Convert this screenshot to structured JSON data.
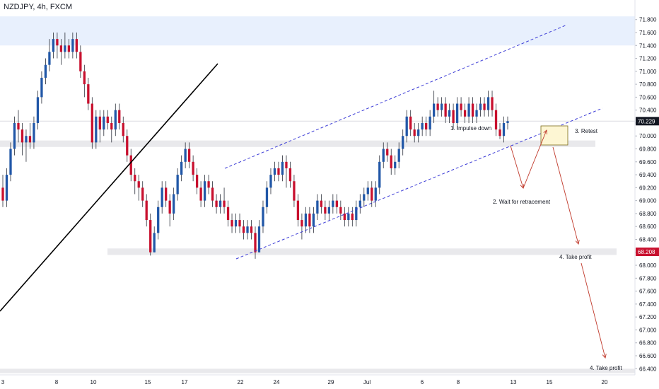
{
  "header": {
    "symbol": "NZDJPY, 4h, FXCM"
  },
  "colors": {
    "bull": "#2157a7",
    "bear": "#c8102e",
    "channel": "#3b3bd6",
    "arrow": "#c0392b",
    "zone_top": "#e8f0fd",
    "zone_gray": "#e9e9ec",
    "retest_box": "#fdf6d3",
    "price_tag": "#131722",
    "price_tag_red": "#c8102e"
  },
  "annotations": [
    {
      "id": "impulse",
      "text": "1. Impulse down"
    },
    {
      "id": "retracement",
      "text": "2. Wait for retracement"
    },
    {
      "id": "retest",
      "text": "3. Retest"
    },
    {
      "id": "tp1",
      "text": "4. Take profit"
    },
    {
      "id": "tp2",
      "text": "4. Take profit"
    }
  ],
  "chart_data": {
    "type": "candlestick",
    "title": "NZDJPY, 4h, FXCM",
    "ylim": [
      66.3,
      71.9
    ],
    "y_ticks": [
      "71.800",
      "71.600",
      "71.400",
      "71.200",
      "71.000",
      "70.800",
      "70.600",
      "70.400",
      "70.200",
      "70.000",
      "69.800",
      "69.600",
      "69.400",
      "69.200",
      "69.000",
      "68.800",
      "68.600",
      "68.400",
      "68.200",
      "68.000",
      "67.800",
      "67.600",
      "67.400",
      "67.200",
      "67.000",
      "66.800",
      "66.600",
      "66.400"
    ],
    "x_ticks": [
      "3",
      "8",
      "10",
      "15",
      "17",
      "22",
      "24",
      "29",
      "Jul",
      "6",
      "8",
      "13",
      "15",
      "20"
    ],
    "current_price": {
      "label": "70.229",
      "value": 70.229
    },
    "support_price": {
      "label": "68.208",
      "value": 68.208
    },
    "zones": [
      {
        "name": "resistance",
        "from": 71.4,
        "to": 71.85
      },
      {
        "name": "retest-level",
        "from": 69.83,
        "to": 69.93
      },
      {
        "name": "take-profit-1",
        "from": 68.16,
        "to": 68.26
      },
      {
        "name": "take-profit-2",
        "from": 66.33,
        "to": 66.4
      }
    ],
    "candles": [
      [
        69.2,
        69.0,
        69.4,
        68.9
      ],
      [
        69.0,
        69.4,
        69.5,
        68.9
      ],
      [
        69.4,
        69.8,
        69.9,
        69.3
      ],
      [
        69.8,
        70.2,
        70.3,
        69.7
      ],
      [
        70.2,
        70.1,
        70.4,
        69.9
      ],
      [
        70.1,
        69.9,
        70.2,
        69.7
      ],
      [
        69.9,
        70.0,
        70.1,
        69.6
      ],
      [
        70.0,
        69.9,
        70.2,
        69.8
      ],
      [
        69.9,
        70.2,
        70.3,
        69.8
      ],
      [
        70.2,
        70.6,
        70.7,
        70.1
      ],
      [
        70.6,
        70.9,
        71.0,
        70.5
      ],
      [
        70.9,
        71.1,
        71.2,
        70.8
      ],
      [
        71.1,
        71.3,
        71.5,
        71.0
      ],
      [
        71.3,
        71.5,
        71.6,
        71.2
      ],
      [
        71.5,
        71.4,
        71.6,
        71.2
      ],
      [
        71.4,
        71.3,
        71.5,
        71.1
      ],
      [
        71.3,
        71.4,
        71.6,
        71.2
      ],
      [
        71.4,
        71.3,
        71.5,
        71.2
      ],
      [
        71.3,
        71.5,
        71.6,
        71.2
      ],
      [
        71.5,
        71.3,
        71.6,
        71.2
      ],
      [
        71.3,
        71.0,
        71.4,
        70.9
      ],
      [
        71.0,
        70.8,
        71.1,
        70.6
      ],
      [
        70.8,
        70.5,
        70.9,
        70.4
      ],
      [
        70.5,
        69.9,
        70.6,
        69.8
      ],
      [
        69.9,
        70.3,
        70.4,
        69.8
      ],
      [
        70.3,
        70.1,
        70.4,
        69.9
      ],
      [
        70.1,
        70.3,
        70.4,
        70.0
      ],
      [
        70.3,
        70.2,
        70.4,
        70.1
      ],
      [
        70.2,
        70.1,
        70.3,
        69.9
      ],
      [
        70.1,
        70.4,
        70.5,
        70.0
      ],
      [
        70.4,
        70.2,
        70.5,
        70.1
      ],
      [
        70.2,
        70.0,
        70.3,
        69.9
      ],
      [
        70.0,
        69.7,
        70.1,
        69.6
      ],
      [
        69.7,
        69.4,
        69.8,
        69.3
      ],
      [
        69.4,
        69.3,
        69.5,
        69.1
      ],
      [
        69.3,
        69.2,
        69.4,
        69.0
      ],
      [
        69.2,
        69.0,
        69.3,
        68.9
      ],
      [
        69.0,
        68.7,
        69.1,
        68.6
      ],
      [
        68.7,
        68.2,
        68.8,
        68.15
      ],
      [
        68.2,
        68.5,
        68.6,
        68.2
      ],
      [
        68.5,
        68.9,
        69.0,
        68.4
      ],
      [
        68.9,
        69.2,
        69.3,
        68.8
      ],
      [
        69.2,
        69.0,
        69.3,
        68.9
      ],
      [
        69.0,
        68.8,
        69.1,
        68.6
      ],
      [
        68.8,
        69.1,
        69.2,
        68.7
      ],
      [
        69.1,
        69.4,
        69.5,
        69.0
      ],
      [
        69.4,
        69.6,
        69.7,
        69.3
      ],
      [
        69.6,
        69.8,
        69.9,
        69.5
      ],
      [
        69.8,
        69.6,
        69.9,
        69.5
      ],
      [
        69.6,
        69.4,
        69.7,
        69.3
      ],
      [
        69.4,
        69.2,
        69.5,
        69.1
      ],
      [
        69.2,
        69.0,
        69.3,
        68.9
      ],
      [
        69.0,
        69.3,
        69.4,
        68.9
      ],
      [
        69.3,
        69.2,
        69.4,
        69.1
      ],
      [
        69.2,
        69.0,
        69.3,
        68.9
      ],
      [
        69.0,
        68.9,
        69.1,
        68.8
      ],
      [
        68.9,
        69.0,
        69.1,
        68.8
      ],
      [
        69.0,
        68.9,
        69.2,
        68.8
      ],
      [
        68.9,
        68.7,
        69.0,
        68.6
      ],
      [
        68.7,
        68.6,
        68.8,
        68.5
      ],
      [
        68.6,
        68.7,
        68.8,
        68.5
      ],
      [
        68.7,
        68.6,
        68.8,
        68.5
      ],
      [
        68.6,
        68.5,
        68.7,
        68.4
      ],
      [
        68.5,
        68.6,
        68.7,
        68.4
      ],
      [
        68.6,
        68.5,
        68.7,
        68.4
      ],
      [
        68.5,
        68.2,
        68.6,
        68.1
      ],
      [
        68.2,
        68.6,
        68.7,
        68.2
      ],
      [
        68.6,
        68.9,
        69.0,
        68.5
      ],
      [
        68.9,
        69.2,
        69.3,
        68.8
      ],
      [
        69.2,
        69.4,
        69.5,
        69.1
      ],
      [
        69.4,
        69.5,
        69.6,
        69.3
      ],
      [
        69.5,
        69.4,
        69.6,
        69.3
      ],
      [
        69.4,
        69.6,
        69.7,
        69.3
      ],
      [
        69.6,
        69.5,
        69.7,
        69.2
      ],
      [
        69.5,
        69.3,
        69.6,
        69.2
      ],
      [
        69.3,
        69.0,
        69.4,
        68.9
      ],
      [
        69.0,
        68.7,
        69.1,
        68.6
      ],
      [
        68.7,
        68.6,
        68.8,
        68.4
      ],
      [
        68.6,
        68.8,
        68.9,
        68.5
      ],
      [
        68.8,
        68.6,
        68.9,
        68.5
      ],
      [
        68.6,
        68.8,
        68.9,
        68.5
      ],
      [
        68.8,
        69.0,
        69.1,
        68.7
      ],
      [
        69.0,
        68.9,
        69.1,
        68.8
      ],
      [
        68.9,
        68.8,
        69.0,
        68.7
      ],
      [
        68.8,
        68.9,
        69.0,
        68.7
      ],
      [
        68.9,
        69.0,
        69.1,
        68.8
      ],
      [
        69.0,
        68.9,
        69.1,
        68.8
      ],
      [
        68.9,
        68.8,
        69.0,
        68.7
      ],
      [
        68.8,
        68.7,
        68.9,
        68.6
      ],
      [
        68.7,
        68.8,
        68.9,
        68.6
      ],
      [
        68.8,
        68.7,
        68.9,
        68.6
      ],
      [
        68.7,
        68.9,
        69.0,
        68.6
      ],
      [
        68.9,
        69.0,
        69.1,
        68.8
      ],
      [
        69.0,
        69.1,
        69.2,
        68.9
      ],
      [
        69.1,
        69.2,
        69.3,
        69.0
      ],
      [
        69.2,
        69.0,
        69.3,
        68.9
      ],
      [
        69.0,
        69.2,
        69.3,
        68.9
      ],
      [
        69.2,
        69.6,
        69.7,
        69.1
      ],
      [
        69.6,
        69.8,
        69.9,
        69.5
      ],
      [
        69.8,
        69.7,
        69.9,
        69.6
      ],
      [
        69.7,
        69.5,
        69.8,
        69.4
      ],
      [
        69.5,
        69.6,
        69.7,
        69.4
      ],
      [
        69.6,
        69.8,
        69.9,
        69.5
      ],
      [
        69.8,
        70.0,
        70.1,
        69.7
      ],
      [
        70.0,
        70.3,
        70.4,
        69.9
      ],
      [
        70.3,
        70.1,
        70.4,
        70.0
      ],
      [
        70.1,
        70.0,
        70.2,
        69.9
      ],
      [
        70.0,
        70.1,
        70.2,
        69.9
      ],
      [
        70.1,
        70.2,
        70.3,
        70.0
      ],
      [
        70.2,
        70.1,
        70.3,
        70.0
      ],
      [
        70.1,
        70.3,
        70.4,
        70.0
      ],
      [
        70.3,
        70.5,
        70.7,
        70.2
      ],
      [
        70.5,
        70.4,
        70.6,
        70.3
      ],
      [
        70.4,
        70.5,
        70.6,
        70.3
      ],
      [
        70.5,
        70.3,
        70.6,
        70.2
      ],
      [
        70.3,
        70.4,
        70.5,
        70.2
      ],
      [
        70.4,
        70.2,
        70.5,
        70.1
      ],
      [
        70.2,
        70.5,
        70.6,
        70.1
      ],
      [
        70.5,
        70.4,
        70.6,
        70.3
      ],
      [
        70.4,
        70.3,
        70.5,
        70.2
      ],
      [
        70.3,
        70.5,
        70.6,
        70.2
      ],
      [
        70.5,
        70.3,
        70.6,
        70.2
      ],
      [
        70.3,
        70.4,
        70.5,
        70.2
      ],
      [
        70.4,
        70.5,
        70.6,
        70.3
      ],
      [
        70.5,
        70.4,
        70.6,
        70.3
      ],
      [
        70.4,
        70.6,
        70.7,
        70.3
      ],
      [
        70.6,
        70.4,
        70.7,
        70.3
      ],
      [
        70.4,
        70.1,
        70.5,
        70.0
      ],
      [
        70.1,
        70.0,
        70.2,
        69.95
      ],
      [
        70.0,
        70.2,
        70.3,
        69.9
      ],
      [
        70.2,
        70.229,
        70.3,
        70.1
      ]
    ]
  }
}
